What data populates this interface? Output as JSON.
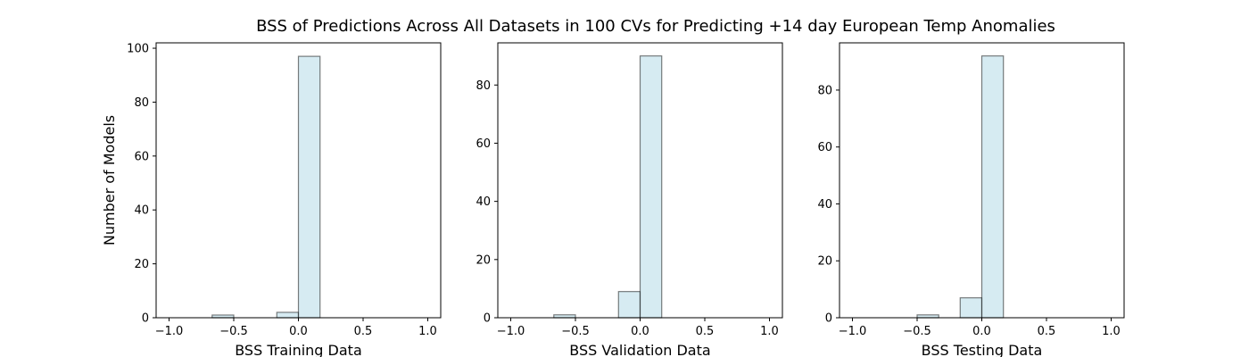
{
  "figure": {
    "title": "BSS of Predictions Across All Datasets in 100 CVs for Predicting +14 day European Temp Anomalies"
  },
  "style": {
    "bar_fill": "#add8e6",
    "bar_fill_opacity": 0.5,
    "bar_edge": "#000000",
    "axis_color": "#000000"
  },
  "chart_data": [
    {
      "type": "bar",
      "xlabel": "BSS Training Data",
      "ylabel": "Number of Models",
      "xlim": [
        -1.1,
        1.1
      ],
      "ylim": [
        0,
        102
      ],
      "xticks": [
        -1.0,
        -0.5,
        0.0,
        0.5,
        1.0
      ],
      "xtick_labels": [
        "−1.0",
        "−0.5",
        "0.0",
        "0.5",
        "1.0"
      ],
      "yticks": [
        0,
        20,
        40,
        60,
        80,
        100
      ],
      "bins": [
        {
          "start": -0.667,
          "end": -0.5,
          "count": 1
        },
        {
          "start": -0.167,
          "end": 0.0,
          "count": 2
        },
        {
          "start": 0.0,
          "end": 0.167,
          "count": 97
        }
      ]
    },
    {
      "type": "bar",
      "xlabel": "BSS Validation Data",
      "ylabel": "",
      "xlim": [
        -1.1,
        1.1
      ],
      "ylim": [
        0,
        94.5
      ],
      "xticks": [
        -1.0,
        -0.5,
        0.0,
        0.5,
        1.0
      ],
      "xtick_labels": [
        "−1.0",
        "−0.5",
        "0.0",
        "0.5",
        "1.0"
      ],
      "yticks": [
        0,
        20,
        40,
        60,
        80
      ],
      "bins": [
        {
          "start": -0.667,
          "end": -0.5,
          "count": 1
        },
        {
          "start": -0.167,
          "end": 0.0,
          "count": 9
        },
        {
          "start": 0.0,
          "end": 0.167,
          "count": 90
        }
      ]
    },
    {
      "type": "bar",
      "xlabel": "BSS Testing Data",
      "ylabel": "",
      "xlim": [
        -1.1,
        1.1
      ],
      "ylim": [
        0,
        96.6
      ],
      "xticks": [
        -1.0,
        -0.5,
        0.0,
        0.5,
        1.0
      ],
      "xtick_labels": [
        "−1.0",
        "−0.5",
        "0.0",
        "0.5",
        "1.0"
      ],
      "yticks": [
        0,
        20,
        40,
        60,
        80
      ],
      "bins": [
        {
          "start": -0.5,
          "end": -0.333,
          "count": 1
        },
        {
          "start": -0.167,
          "end": 0.0,
          "count": 7
        },
        {
          "start": 0.0,
          "end": 0.167,
          "count": 92
        }
      ]
    }
  ]
}
